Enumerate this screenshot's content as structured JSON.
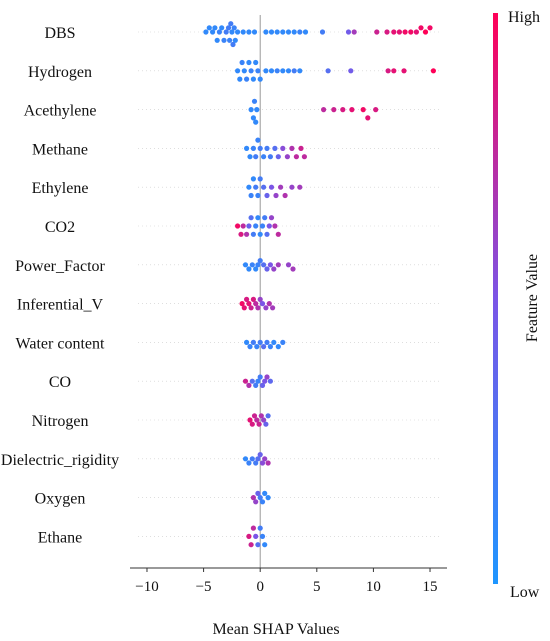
{
  "chart_data": {
    "type": "scatter",
    "subtype": "shap-beeswarm",
    "title": "",
    "xlabel": "Mean SHAP Values",
    "ylabel": "",
    "xlim": [
      -11.5,
      16.5
    ],
    "xticks": [
      -10,
      -5,
      0,
      5,
      10,
      15
    ],
    "xtick_labels": [
      "−10",
      "−5",
      "0",
      "5",
      "10",
      "15"
    ],
    "grid": false,
    "colorbar": {
      "label": "Feature Value",
      "high_label": "High",
      "low_label": "Low",
      "colors": [
        "#1e96ff",
        "#7b55e6",
        "#ff0057"
      ]
    },
    "features": [
      {
        "name": "DBS",
        "points": [
          [
            -4.8,
            0.1
          ],
          [
            -4.5,
            0.1
          ],
          [
            -4.2,
            0.1
          ],
          [
            -4.0,
            0.1
          ],
          [
            -3.8,
            0.1
          ],
          [
            -3.6,
            0.15
          ],
          [
            -3.4,
            0.1
          ],
          [
            -3.2,
            0.15
          ],
          [
            -3.0,
            0.2
          ],
          [
            -2.8,
            0.2
          ],
          [
            -2.7,
            0.15
          ],
          [
            -2.6,
            0.2
          ],
          [
            -2.5,
            0.1
          ],
          [
            -2.4,
            0.2
          ],
          [
            -2.3,
            0.15
          ],
          [
            -2.2,
            0.1
          ],
          [
            -2.0,
            0.1
          ],
          [
            -1.5,
            0.1
          ],
          [
            -1.0,
            0.1
          ],
          [
            -0.5,
            0.1
          ],
          [
            0.5,
            0.1
          ],
          [
            1.0,
            0.1
          ],
          [
            1.5,
            0.1
          ],
          [
            2.0,
            0.1
          ],
          [
            2.5,
            0.1
          ],
          [
            3.0,
            0.1
          ],
          [
            3.5,
            0.15
          ],
          [
            4.0,
            0.1
          ],
          [
            5.5,
            0.2
          ],
          [
            7.8,
            0.45
          ],
          [
            8.3,
            0.65
          ],
          [
            10.3,
            0.8
          ],
          [
            11.2,
            0.85
          ],
          [
            11.8,
            0.9
          ],
          [
            12.3,
            0.9
          ],
          [
            12.8,
            0.95
          ],
          [
            13.3,
            0.95
          ],
          [
            13.8,
            0.9
          ],
          [
            14.2,
            0.95
          ],
          [
            14.6,
            1.0
          ],
          [
            15.0,
            0.95
          ]
        ]
      },
      {
        "name": "Hydrogen",
        "points": [
          [
            -2.0,
            0.1
          ],
          [
            -1.8,
            0.1
          ],
          [
            -1.6,
            0.15
          ],
          [
            -1.4,
            0.1
          ],
          [
            -1.2,
            0.15
          ],
          [
            -1.0,
            0.1
          ],
          [
            -0.8,
            0.15
          ],
          [
            -0.6,
            0.1
          ],
          [
            -0.4,
            0.1
          ],
          [
            -0.2,
            0.15
          ],
          [
            0.0,
            0.1
          ],
          [
            0.5,
            0.1
          ],
          [
            1.0,
            0.1
          ],
          [
            1.5,
            0.15
          ],
          [
            2.0,
            0.1
          ],
          [
            2.5,
            0.1
          ],
          [
            3.0,
            0.2
          ],
          [
            3.5,
            0.1
          ],
          [
            6.0,
            0.3
          ],
          [
            8.0,
            0.45
          ],
          [
            11.3,
            0.85
          ],
          [
            11.8,
            0.9
          ],
          [
            12.7,
            0.9
          ],
          [
            15.3,
            1.0
          ]
        ]
      },
      {
        "name": "Acethylene",
        "points": [
          [
            -0.8,
            0.1
          ],
          [
            -0.6,
            0.1
          ],
          [
            -0.5,
            0.15
          ],
          [
            -0.4,
            0.1
          ],
          [
            -0.3,
            0.1
          ],
          [
            5.6,
            0.75
          ],
          [
            6.5,
            0.8
          ],
          [
            7.3,
            0.85
          ],
          [
            8.1,
            0.9
          ],
          [
            9.1,
            0.95
          ],
          [
            9.5,
            0.9
          ],
          [
            10.2,
            0.85
          ]
        ]
      },
      {
        "name": "Methane",
        "points": [
          [
            -1.2,
            0.1
          ],
          [
            -0.9,
            0.1
          ],
          [
            -0.6,
            0.15
          ],
          [
            -0.4,
            0.2
          ],
          [
            -0.2,
            0.15
          ],
          [
            0.0,
            0.2
          ],
          [
            0.3,
            0.15
          ],
          [
            0.6,
            0.2
          ],
          [
            0.9,
            0.2
          ],
          [
            1.3,
            0.3
          ],
          [
            1.6,
            0.4
          ],
          [
            2.0,
            0.55
          ],
          [
            2.4,
            0.6
          ],
          [
            2.8,
            0.7
          ],
          [
            3.2,
            0.75
          ],
          [
            3.6,
            0.8
          ],
          [
            3.9,
            0.75
          ]
        ]
      },
      {
        "name": "Ethylene",
        "points": [
          [
            -1.0,
            0.1
          ],
          [
            -0.8,
            0.15
          ],
          [
            -0.6,
            0.1
          ],
          [
            -0.4,
            0.2
          ],
          [
            -0.2,
            0.15
          ],
          [
            0.0,
            0.2
          ],
          [
            0.3,
            0.3
          ],
          [
            0.6,
            0.4
          ],
          [
            1.0,
            0.5
          ],
          [
            1.4,
            0.6
          ],
          [
            1.8,
            0.65
          ],
          [
            2.2,
            0.7
          ],
          [
            2.8,
            0.6
          ],
          [
            3.5,
            0.65
          ]
        ]
      },
      {
        "name": "CO2",
        "points": [
          [
            -2.0,
            0.95
          ],
          [
            -1.7,
            0.85
          ],
          [
            -1.5,
            0.75
          ],
          [
            -1.2,
            0.7
          ],
          [
            -1.0,
            0.4
          ],
          [
            -0.8,
            0.3
          ],
          [
            -0.6,
            0.2
          ],
          [
            -0.4,
            0.15
          ],
          [
            -0.2,
            0.1
          ],
          [
            0.0,
            0.1
          ],
          [
            0.2,
            0.15
          ],
          [
            0.4,
            0.2
          ],
          [
            0.6,
            0.3
          ],
          [
            0.8,
            0.5
          ],
          [
            1.0,
            0.6
          ],
          [
            1.3,
            0.7
          ],
          [
            1.6,
            0.75
          ]
        ]
      },
      {
        "name": "Power_Factor",
        "points": [
          [
            -1.3,
            0.1
          ],
          [
            -1.0,
            0.1
          ],
          [
            -0.7,
            0.15
          ],
          [
            -0.4,
            0.1
          ],
          [
            -0.2,
            0.15
          ],
          [
            0.0,
            0.2
          ],
          [
            0.3,
            0.3
          ],
          [
            0.6,
            0.4
          ],
          [
            0.9,
            0.5
          ],
          [
            1.2,
            0.6
          ],
          [
            1.6,
            0.65
          ],
          [
            2.5,
            0.6
          ],
          [
            2.9,
            0.65
          ]
        ]
      },
      {
        "name": "Inferential_V",
        "points": [
          [
            -1.6,
            0.95
          ],
          [
            -1.4,
            0.9
          ],
          [
            -1.2,
            0.85
          ],
          [
            -1.0,
            0.9
          ],
          [
            -0.8,
            0.8
          ],
          [
            -0.6,
            0.85
          ],
          [
            -0.4,
            0.75
          ],
          [
            -0.2,
            0.7
          ],
          [
            0.0,
            0.6
          ],
          [
            0.2,
            0.5
          ],
          [
            0.5,
            0.6
          ],
          [
            0.8,
            0.7
          ],
          [
            1.1,
            0.65
          ]
        ]
      },
      {
        "name": "Water content",
        "points": [
          [
            -1.2,
            0.1
          ],
          [
            -0.9,
            0.15
          ],
          [
            -0.6,
            0.2
          ],
          [
            -0.3,
            0.15
          ],
          [
            0.0,
            0.2
          ],
          [
            0.3,
            0.3
          ],
          [
            0.6,
            0.2
          ],
          [
            0.9,
            0.15
          ],
          [
            1.2,
            0.1
          ],
          [
            1.6,
            0.1
          ],
          [
            2.0,
            0.15
          ]
        ]
      },
      {
        "name": "CO",
        "points": [
          [
            -1.3,
            0.8
          ],
          [
            -1.0,
            0.7
          ],
          [
            -0.7,
            0.3
          ],
          [
            -0.4,
            0.2
          ],
          [
            -0.2,
            0.15
          ],
          [
            0.0,
            0.2
          ],
          [
            0.2,
            0.4
          ],
          [
            0.4,
            0.5
          ],
          [
            0.6,
            0.6
          ],
          [
            0.9,
            0.35
          ]
        ]
      },
      {
        "name": "Nitrogen",
        "points": [
          [
            -0.9,
            0.9
          ],
          [
            -0.7,
            0.85
          ],
          [
            -0.5,
            0.8
          ],
          [
            -0.3,
            0.75
          ],
          [
            -0.1,
            0.8
          ],
          [
            0.1,
            0.7
          ],
          [
            0.3,
            0.6
          ],
          [
            0.5,
            0.4
          ],
          [
            0.7,
            0.3
          ]
        ]
      },
      {
        "name": "Dielectric_rigidity",
        "points": [
          [
            -1.3,
            0.1
          ],
          [
            -1.0,
            0.15
          ],
          [
            -0.7,
            0.2
          ],
          [
            -0.4,
            0.2
          ],
          [
            -0.2,
            0.3
          ],
          [
            0.0,
            0.4
          ],
          [
            0.2,
            0.55
          ],
          [
            0.4,
            0.6
          ],
          [
            0.7,
            0.7
          ]
        ]
      },
      {
        "name": "Oxygen",
        "points": [
          [
            -0.6,
            0.7
          ],
          [
            -0.4,
            0.6
          ],
          [
            -0.2,
            0.4
          ],
          [
            0.0,
            0.2
          ],
          [
            0.2,
            0.15
          ],
          [
            0.4,
            0.1
          ],
          [
            0.7,
            0.1
          ]
        ]
      },
      {
        "name": "Ethane",
        "points": [
          [
            -1.0,
            0.85
          ],
          [
            -0.8,
            0.8
          ],
          [
            -0.6,
            0.75
          ],
          [
            -0.4,
            0.5
          ],
          [
            -0.2,
            0.3
          ],
          [
            0.0,
            0.2
          ],
          [
            0.2,
            0.15
          ],
          [
            0.4,
            0.1
          ]
        ]
      }
    ]
  }
}
